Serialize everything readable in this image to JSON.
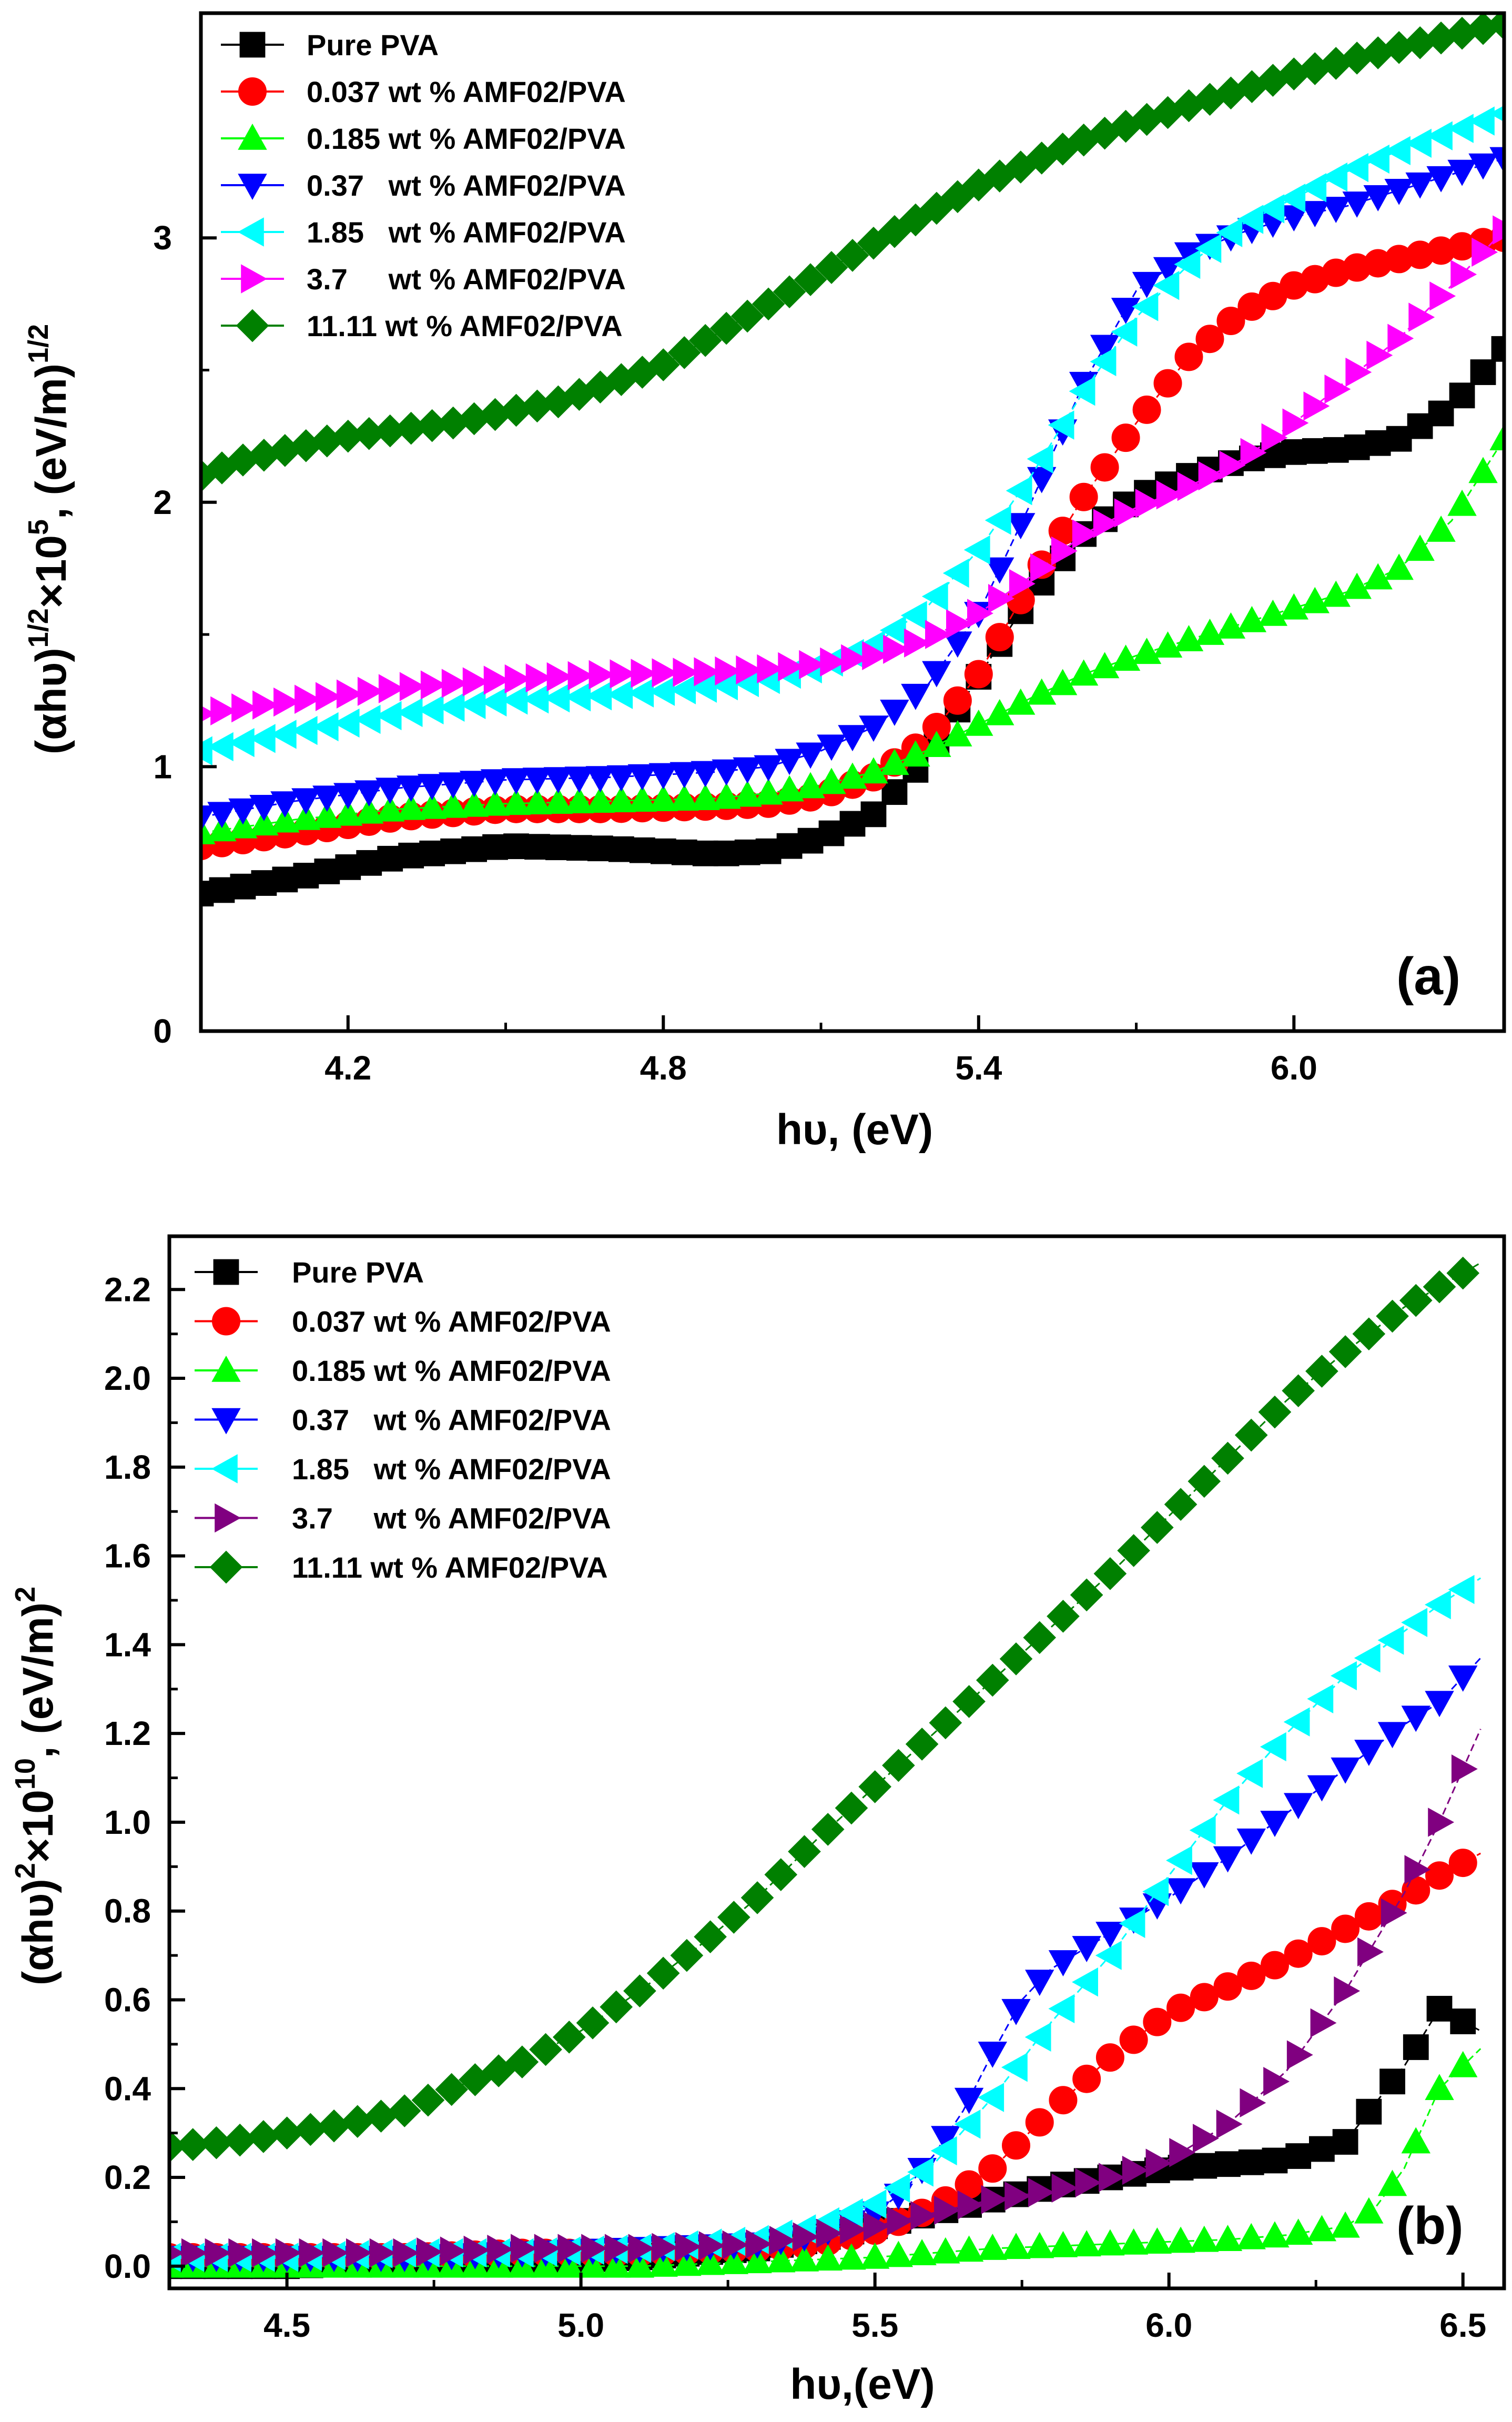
{
  "chart_data": [
    {
      "type": "line",
      "panel_label": "(a)",
      "xlabel": "hυ, (eV)",
      "ylabel": "(αhυ)1/2×105, (eV/m)1/2",
      "ylabel_parts": {
        "base": "(αhυ)",
        "sup1": "1/2",
        "mid": "×10",
        "sup2": "5",
        "tail": ", (eV/m)",
        "sup3": "1/2"
      },
      "xlim": [
        3.92,
        6.4
      ],
      "ylim": [
        0,
        3.85
      ],
      "xticks": [
        4.2,
        4.8,
        5.4,
        6.0
      ],
      "xtick_labels": [
        "4.2",
        "4.8",
        "5.4",
        "6.0"
      ],
      "yticks": [
        0,
        1,
        2,
        3
      ],
      "ytick_labels": [
        "0",
        "1",
        "2",
        "3"
      ],
      "legend_position": "top-left",
      "series": [
        {
          "name": "Pure PVA",
          "color": "#000000",
          "marker": "square",
          "x": [
            3.92,
            4.1,
            4.3,
            4.5,
            4.7,
            4.9,
            5.0,
            5.1,
            5.2,
            5.3,
            5.4,
            5.5,
            5.6,
            5.7,
            5.8,
            5.9,
            6.0,
            6.1,
            6.2,
            6.3,
            6.4
          ],
          "y": [
            0.52,
            0.58,
            0.66,
            0.7,
            0.69,
            0.67,
            0.68,
            0.73,
            0.82,
            1.03,
            1.34,
            1.65,
            1.88,
            2.02,
            2.1,
            2.16,
            2.19,
            2.2,
            2.24,
            2.36,
            2.58
          ]
        },
        {
          "name": "0.037 wt % AMF02/PVA",
          "color": "#ff0000",
          "marker": "circle",
          "x": [
            3.92,
            4.1,
            4.3,
            4.5,
            4.7,
            4.9,
            5.0,
            5.1,
            5.2,
            5.3,
            5.4,
            5.5,
            5.6,
            5.7,
            5.8,
            5.9,
            6.0,
            6.1,
            6.2,
            6.3,
            6.4
          ],
          "y": [
            0.7,
            0.75,
            0.81,
            0.84,
            0.84,
            0.85,
            0.86,
            0.89,
            0.96,
            1.1,
            1.35,
            1.7,
            2.02,
            2.3,
            2.55,
            2.72,
            2.82,
            2.88,
            2.92,
            2.96,
            3.0
          ]
        },
        {
          "name": "0.185 wt % AMF02/PVA",
          "color": "#00ff00",
          "marker": "triangle-up",
          "x": [
            3.92,
            4.1,
            4.3,
            4.5,
            4.7,
            4.9,
            5.0,
            5.1,
            5.2,
            5.3,
            5.4,
            5.5,
            5.6,
            5.7,
            5.8,
            5.9,
            6.0,
            6.1,
            6.2,
            6.3,
            6.4
          ],
          "y": [
            0.75,
            0.8,
            0.84,
            0.86,
            0.87,
            0.88,
            0.9,
            0.93,
            0.98,
            1.06,
            1.16,
            1.26,
            1.35,
            1.42,
            1.48,
            1.54,
            1.6,
            1.66,
            1.75,
            1.93,
            2.24
          ]
        },
        {
          "name": "0.37   wt % AMF02/PVA",
          "color": "#0000ff",
          "marker": "triangle-down",
          "x": [
            3.92,
            4.1,
            4.3,
            4.5,
            4.7,
            4.9,
            5.0,
            5.1,
            5.2,
            5.3,
            5.4,
            5.5,
            5.6,
            5.7,
            5.8,
            5.9,
            6.0,
            6.1,
            6.2,
            6.3,
            6.4
          ],
          "y": [
            0.81,
            0.87,
            0.92,
            0.95,
            0.96,
            0.98,
            1.0,
            1.06,
            1.15,
            1.3,
            1.58,
            2.0,
            2.45,
            2.8,
            2.94,
            3.02,
            3.08,
            3.12,
            3.18,
            3.24,
            3.3
          ]
        },
        {
          "name": "1.85   wt % AMF02/PVA",
          "color": "#00ffff",
          "marker": "triangle-left",
          "x": [
            3.92,
            4.1,
            4.3,
            4.5,
            4.7,
            4.9,
            5.0,
            5.1,
            5.2,
            5.3,
            5.4,
            5.5,
            5.6,
            5.7,
            5.8,
            5.9,
            6.0,
            6.1,
            6.2,
            6.3,
            6.4
          ],
          "y": [
            1.06,
            1.13,
            1.2,
            1.25,
            1.27,
            1.3,
            1.33,
            1.38,
            1.46,
            1.6,
            1.82,
            2.1,
            2.42,
            2.7,
            2.9,
            3.05,
            3.15,
            3.25,
            3.33,
            3.4,
            3.47
          ]
        },
        {
          "name": "3.7     wt % AMF02/PVA",
          "color": "#ff00ff",
          "marker": "triangle-right",
          "x": [
            3.92,
            4.1,
            4.3,
            4.5,
            4.7,
            4.9,
            5.0,
            5.1,
            5.2,
            5.3,
            5.4,
            5.5,
            5.6,
            5.7,
            5.8,
            5.9,
            6.0,
            6.1,
            6.2,
            6.3,
            6.4
          ],
          "y": [
            1.2,
            1.25,
            1.3,
            1.33,
            1.35,
            1.36,
            1.37,
            1.39,
            1.42,
            1.48,
            1.58,
            1.72,
            1.88,
            1.98,
            2.06,
            2.16,
            2.3,
            2.46,
            2.62,
            2.82,
            3.03
          ]
        },
        {
          "name": "11.11 wt % AMF02/PVA",
          "color": "#008000",
          "marker": "diamond",
          "x": [
            3.92,
            4.0,
            4.2,
            4.4,
            4.6,
            4.8,
            5.0,
            5.2,
            5.4,
            5.6,
            5.8,
            6.0,
            6.2,
            6.4
          ],
          "y": [
            2.1,
            2.16,
            2.25,
            2.3,
            2.38,
            2.52,
            2.75,
            2.98,
            3.2,
            3.37,
            3.5,
            3.62,
            3.72,
            3.81
          ]
        }
      ]
    },
    {
      "type": "line",
      "panel_label": "(b)",
      "xlabel": "hυ,(eV)",
      "ylabel": "(αhυ)2×1010, (eV/m)2",
      "ylabel_parts": {
        "base": "(αhυ)",
        "sup1": "2",
        "mid": "×10",
        "sup2": "10",
        "tail": ", (eV/m)",
        "sup3": "2"
      },
      "xlim": [
        4.3,
        6.57
      ],
      "ylim": [
        -0.05,
        2.32
      ],
      "xticks": [
        4.5,
        5.0,
        5.5,
        6.0,
        6.5
      ],
      "xtick_labels": [
        "4.5",
        "5.0",
        "5.5",
        "6.0",
        "6.5"
      ],
      "yticks": [
        0.0,
        0.2,
        0.4,
        0.6,
        0.8,
        1.0,
        1.2,
        1.4,
        1.6,
        1.8,
        2.0,
        2.2
      ],
      "ytick_labels": [
        "0.0",
        "0.2",
        "0.4",
        "0.6",
        "0.8",
        "1.0",
        "1.2",
        "1.4",
        "1.6",
        "1.8",
        "2.0",
        "2.2"
      ],
      "legend_position": "top-left",
      "series": [
        {
          "name": "Pure PVA",
          "color": "#000000",
          "marker": "square",
          "x": [
            4.3,
            4.5,
            4.7,
            4.9,
            5.1,
            5.3,
            5.4,
            5.5,
            5.6,
            5.7,
            5.8,
            5.9,
            6.0,
            6.1,
            6.2,
            6.3,
            6.4,
            6.46,
            6.53
          ],
          "y": [
            0.0,
            0.0,
            0.01,
            0.01,
            0.02,
            0.04,
            0.06,
            0.09,
            0.12,
            0.15,
            0.18,
            0.2,
            0.22,
            0.23,
            0.24,
            0.28,
            0.45,
            0.58,
            0.53
          ]
        },
        {
          "name": "0.037 wt % AMF02/PVA",
          "color": "#ff0000",
          "marker": "circle",
          "x": [
            4.3,
            4.5,
            4.7,
            4.9,
            5.1,
            5.3,
            5.4,
            5.5,
            5.6,
            5.7,
            5.8,
            5.9,
            6.0,
            6.1,
            6.2,
            6.3,
            6.4,
            6.46,
            6.53
          ],
          "y": [
            0.02,
            0.02,
            0.02,
            0.03,
            0.03,
            0.04,
            0.05,
            0.08,
            0.13,
            0.22,
            0.35,
            0.47,
            0.57,
            0.63,
            0.69,
            0.76,
            0.83,
            0.88,
            0.93
          ]
        },
        {
          "name": "0.185 wt % AMF02/PVA",
          "color": "#00ff00",
          "marker": "triangle-up",
          "x": [
            4.3,
            4.5,
            4.7,
            4.9,
            5.1,
            5.3,
            5.5,
            5.7,
            5.9,
            6.1,
            6.2,
            6.3,
            6.35,
            6.4,
            6.46,
            6.53
          ],
          "y": [
            0.0,
            0.0,
            0.0,
            0.0,
            0.0,
            0.01,
            0.02,
            0.04,
            0.05,
            0.06,
            0.07,
            0.09,
            0.13,
            0.22,
            0.4,
            0.49
          ]
        },
        {
          "name": "0.37   wt % AMF02/PVA",
          "color": "#0000ff",
          "marker": "triangle-down",
          "x": [
            4.3,
            4.5,
            4.7,
            4.9,
            5.1,
            5.3,
            5.4,
            5.5,
            5.55,
            5.6,
            5.65,
            5.7,
            5.75,
            5.8,
            5.9,
            6.0,
            6.1,
            6.2,
            6.3,
            6.4,
            6.46,
            6.53
          ],
          "y": [
            0.02,
            0.02,
            0.02,
            0.03,
            0.04,
            0.05,
            0.07,
            0.12,
            0.17,
            0.25,
            0.35,
            0.48,
            0.6,
            0.67,
            0.75,
            0.83,
            0.92,
            1.02,
            1.12,
            1.22,
            1.27,
            1.37
          ]
        },
        {
          "name": "1.85   wt % AMF02/PVA",
          "color": "#00ffff",
          "marker": "triangle-left",
          "x": [
            4.3,
            4.5,
            4.7,
            4.9,
            5.1,
            5.3,
            5.4,
            5.5,
            5.6,
            5.7,
            5.8,
            5.9,
            6.0,
            6.1,
            6.2,
            6.3,
            6.4,
            6.46,
            6.53
          ],
          "y": [
            0.02,
            0.02,
            0.03,
            0.03,
            0.04,
            0.06,
            0.09,
            0.14,
            0.23,
            0.38,
            0.55,
            0.7,
            0.88,
            1.05,
            1.2,
            1.33,
            1.43,
            1.49,
            1.55
          ]
        },
        {
          "name": "3.7     wt % AMF02/PVA",
          "color": "#800080",
          "marker": "triangle-right",
          "x": [
            4.3,
            4.5,
            4.7,
            4.9,
            5.1,
            5.3,
            5.4,
            5.5,
            5.6,
            5.7,
            5.8,
            5.9,
            6.0,
            6.1,
            6.2,
            6.3,
            6.4,
            6.46,
            6.53
          ],
          "y": [
            0.03,
            0.03,
            0.03,
            0.04,
            0.04,
            0.05,
            0.07,
            0.09,
            0.12,
            0.15,
            0.17,
            0.2,
            0.24,
            0.32,
            0.44,
            0.62,
            0.84,
            1.0,
            1.21
          ]
        },
        {
          "name": "11.11 wt % AMF02/PVA",
          "color": "#008000",
          "marker": "diamond",
          "x": [
            4.3,
            4.4,
            4.5,
            4.6,
            4.7,
            4.8,
            4.9,
            5.0,
            5.1,
            5.2,
            5.3,
            5.4,
            5.5,
            5.6,
            5.7,
            5.8,
            5.9,
            6.0,
            6.1,
            6.2,
            6.3,
            6.4,
            6.53
          ],
          "y": [
            0.27,
            0.28,
            0.3,
            0.32,
            0.35,
            0.41,
            0.46,
            0.53,
            0.62,
            0.72,
            0.83,
            0.96,
            1.08,
            1.2,
            1.32,
            1.44,
            1.56,
            1.69,
            1.82,
            1.95,
            2.06,
            2.16,
            2.26
          ]
        }
      ]
    }
  ]
}
